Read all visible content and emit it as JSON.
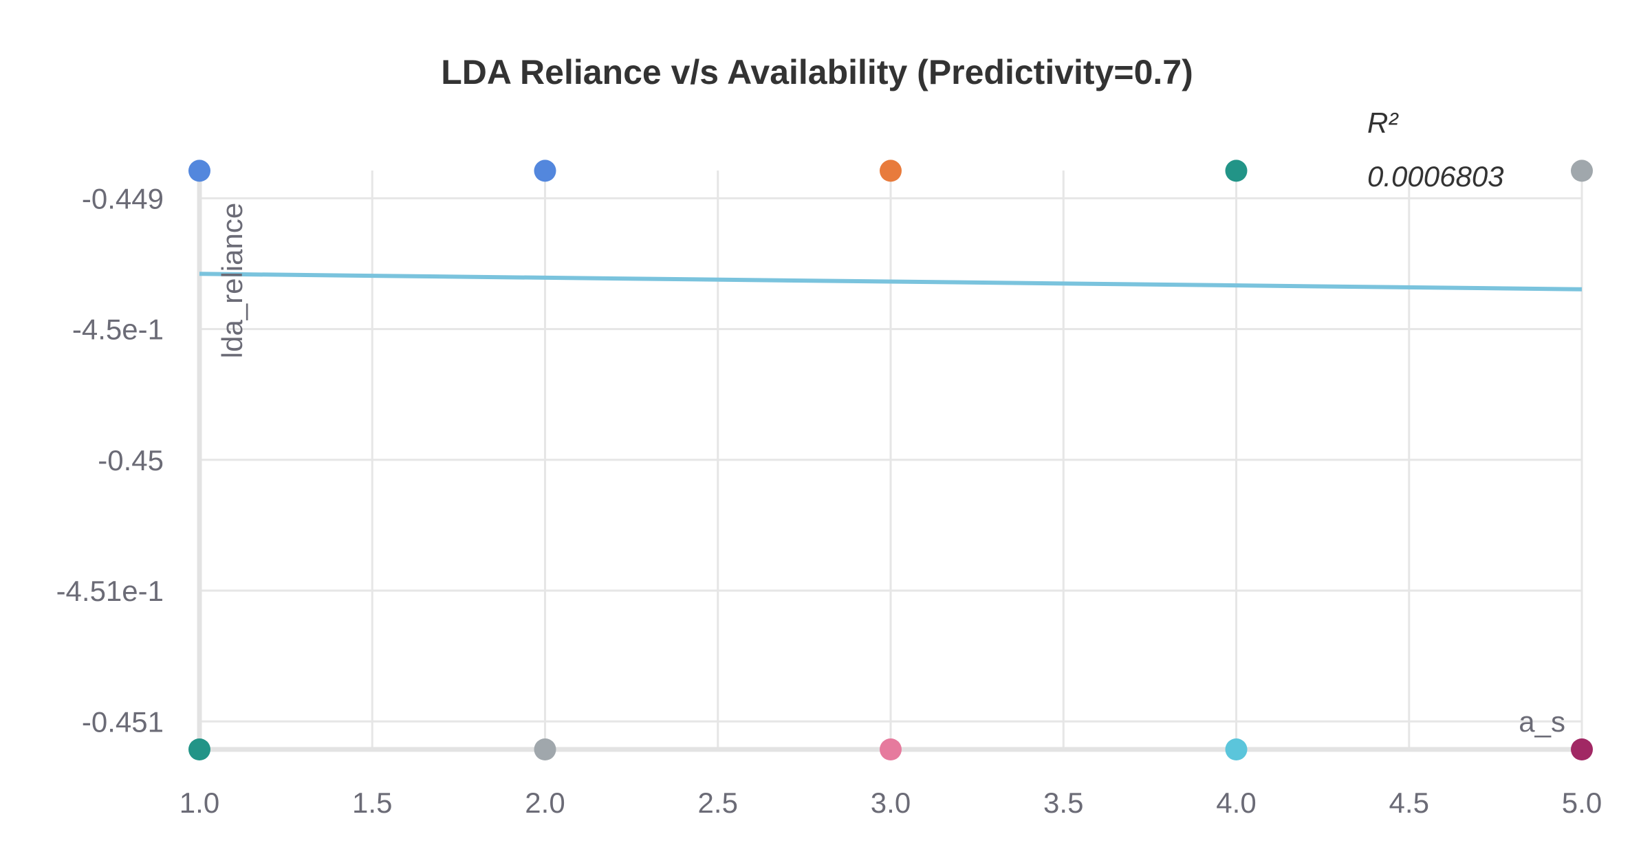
{
  "chart_data": {
    "type": "scatter",
    "title": "LDA Reliance v/s Availability (Predictivity=0.7)",
    "xlabel": "a_s",
    "ylabel": "lda_reliance",
    "xlim": [
      1.0,
      5.0
    ],
    "ylim": [
      -0.451107,
      -0.448894
    ],
    "x_ticks": [
      1.0,
      1.5,
      2.0,
      2.5,
      3.0,
      3.5,
      4.0,
      4.5,
      5.0
    ],
    "x_tick_labels": [
      "1.0",
      "1.5",
      "2.0",
      "2.5",
      "3.0",
      "3.5",
      "4.0",
      "4.5",
      "5.0"
    ],
    "y_ticks": [
      -0.449,
      -0.4495,
      -0.45,
      -0.4505,
      -0.451
    ],
    "y_tick_labels": [
      "-0.449",
      "-4.5e-1",
      "-0.45",
      "-4.51e-1",
      "-0.451"
    ],
    "grid": true,
    "points": [
      {
        "x": 1.0,
        "y": -0.448895,
        "color": "#5387dd"
      },
      {
        "x": 2.0,
        "y": -0.448895,
        "color": "#5387dd"
      },
      {
        "x": 3.0,
        "y": -0.448895,
        "color": "#e87b3c"
      },
      {
        "x": 4.0,
        "y": -0.448895,
        "color": "#229487"
      },
      {
        "x": 5.0,
        "y": -0.448895,
        "color": "#a0a7ac"
      },
      {
        "x": 1.0,
        "y": -0.451107,
        "color": "#229487"
      },
      {
        "x": 2.0,
        "y": -0.451107,
        "color": "#a0a7ac"
      },
      {
        "x": 3.0,
        "y": -0.451107,
        "color": "#e67a9d"
      },
      {
        "x": 4.0,
        "y": -0.451107,
        "color": "#5bc5db"
      },
      {
        "x": 5.0,
        "y": -0.451107,
        "color": "#a12864"
      }
    ],
    "trendline": {
      "x": [
        1.0,
        5.0
      ],
      "y": [
        -0.449289,
        -0.449348
      ],
      "color": "#7ac3dd"
    },
    "annotation": {
      "label": "R²",
      "value": "0.0006803"
    }
  }
}
